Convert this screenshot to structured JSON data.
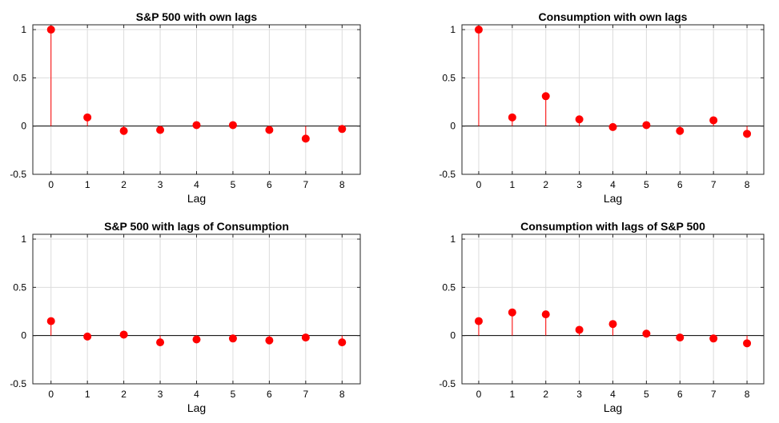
{
  "chart_data": [
    {
      "type": "stem",
      "title": "S&P 500 with own lags",
      "xlabel": "Lag",
      "ylabel": "",
      "x": [
        0,
        1,
        2,
        3,
        4,
        5,
        6,
        7,
        8
      ],
      "values": [
        1.0,
        0.09,
        -0.05,
        -0.04,
        0.01,
        0.01,
        -0.04,
        -0.13,
        -0.03
      ],
      "xlim": [
        -0.5,
        8.5
      ],
      "ylim": [
        -0.5,
        1.05
      ],
      "yticks": [
        -0.5,
        0,
        0.5,
        1
      ],
      "yticklabels": [
        "-0.5",
        "0",
        "0.5",
        "1"
      ],
      "xticklabels": [
        "0",
        "1",
        "2",
        "3",
        "4",
        "5",
        "6",
        "7",
        "8"
      ],
      "grid": true,
      "color": "#ff0000"
    },
    {
      "type": "stem",
      "title": "Consumption with own lags",
      "xlabel": "Lag",
      "ylabel": "",
      "x": [
        0,
        1,
        2,
        3,
        4,
        5,
        6,
        7,
        8
      ],
      "values": [
        1.0,
        0.09,
        0.31,
        0.07,
        -0.01,
        0.01,
        -0.05,
        0.06,
        -0.08
      ],
      "xlim": [
        -0.5,
        8.5
      ],
      "ylim": [
        -0.5,
        1.05
      ],
      "yticks": [
        -0.5,
        0,
        0.5,
        1
      ],
      "yticklabels": [
        "-0.5",
        "0",
        "0.5",
        "1"
      ],
      "xticklabels": [
        "0",
        "1",
        "2",
        "3",
        "4",
        "5",
        "6",
        "7",
        "8"
      ],
      "grid": true,
      "color": "#ff0000"
    },
    {
      "type": "stem",
      "title": "S&P 500 with lags of Consumption",
      "xlabel": "Lag",
      "ylabel": "",
      "x": [
        0,
        1,
        2,
        3,
        4,
        5,
        6,
        7,
        8
      ],
      "values": [
        0.15,
        -0.01,
        0.01,
        -0.07,
        -0.04,
        -0.03,
        -0.05,
        -0.02,
        -0.07
      ],
      "xlim": [
        -0.5,
        8.5
      ],
      "ylim": [
        -0.5,
        1.05
      ],
      "yticks": [
        -0.5,
        0,
        0.5,
        1
      ],
      "yticklabels": [
        "-0.5",
        "0",
        "0.5",
        "1"
      ],
      "xticklabels": [
        "0",
        "1",
        "2",
        "3",
        "4",
        "5",
        "6",
        "7",
        "8"
      ],
      "grid": true,
      "color": "#ff0000"
    },
    {
      "type": "stem",
      "title": "Consumption with lags of S&P 500",
      "xlabel": "Lag",
      "ylabel": "",
      "x": [
        0,
        1,
        2,
        3,
        4,
        5,
        6,
        7,
        8
      ],
      "values": [
        0.15,
        0.24,
        0.22,
        0.06,
        0.12,
        0.02,
        -0.02,
        -0.03,
        -0.08
      ],
      "xlim": [
        -0.5,
        8.5
      ],
      "ylim": [
        -0.5,
        1.05
      ],
      "yticks": [
        -0.5,
        0,
        0.5,
        1
      ],
      "yticklabels": [
        "-0.5",
        "0",
        "0.5",
        "1"
      ],
      "xticklabels": [
        "0",
        "1",
        "2",
        "3",
        "4",
        "5",
        "6",
        "7",
        "8"
      ],
      "grid": true,
      "color": "#ff0000"
    }
  ]
}
